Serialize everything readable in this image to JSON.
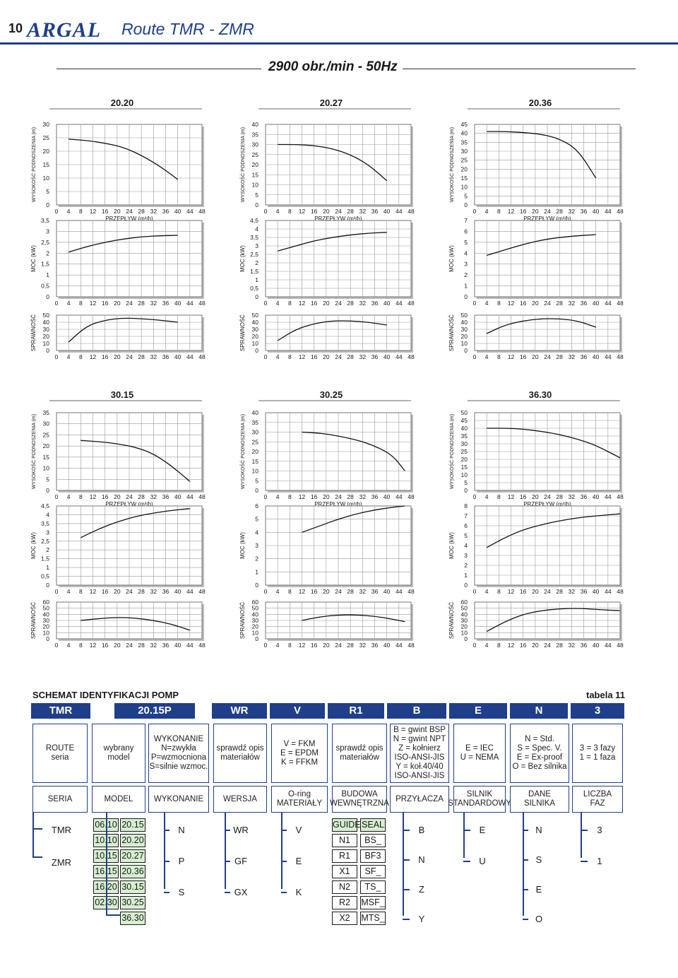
{
  "header": {
    "page_number": "10",
    "brand": "ARGAL",
    "title": "Route TMR - ZMR",
    "speed": "2900 obr./min - 50Hz"
  },
  "axis_text": {
    "head": "WYSOKOŚĆ PODNOSZENIA (m)",
    "flow": "PRZEPŁYW (m³/h)",
    "power": "MOC (kW)",
    "efficiency": "SPRAWNOŚĆ"
  },
  "chart_data": [
    {
      "type": "line",
      "title": "20.20",
      "x_ticks": [
        0,
        4,
        8,
        12,
        16,
        20,
        24,
        28,
        32,
        36,
        40,
        44,
        48
      ],
      "head": {
        "ylim": [
          0,
          30
        ],
        "y_ticks": [
          "0",
          "5",
          "10",
          "15",
          "20",
          "25",
          "30"
        ],
        "x": [
          4,
          10,
          16,
          22,
          28,
          34,
          40
        ],
        "y": [
          24.5,
          24,
          23,
          21.5,
          18.5,
          14.5,
          9.5
        ]
      },
      "power": {
        "ylim": [
          0,
          3.5
        ],
        "y_ticks": [
          "0",
          "0,5",
          "1",
          "1,5",
          "2",
          "2,5",
          "3",
          "3,5"
        ],
        "x": [
          4,
          10,
          16,
          22,
          28,
          34,
          40
        ],
        "y": [
          2.05,
          2.3,
          2.5,
          2.65,
          2.75,
          2.8,
          2.82
        ]
      },
      "efficiency": {
        "ylim": [
          0,
          50
        ],
        "y_ticks": [
          "0",
          "10",
          "20",
          "30",
          "40",
          "50"
        ],
        "x": [
          4,
          10,
          16,
          22,
          28,
          34,
          40
        ],
        "y": [
          12,
          35,
          43,
          46,
          45,
          43,
          40
        ]
      }
    },
    {
      "type": "line",
      "title": "20.27",
      "x_ticks": [
        0,
        4,
        8,
        12,
        16,
        20,
        24,
        28,
        32,
        36,
        40,
        44,
        48
      ],
      "head": {
        "ylim": [
          0,
          40
        ],
        "y_ticks": [
          "0",
          "5",
          "10",
          "15",
          "20",
          "25",
          "30",
          "35",
          "40"
        ],
        "x": [
          4,
          10,
          16,
          22,
          28,
          34,
          40
        ],
        "y": [
          30,
          30,
          29.5,
          28,
          25,
          20,
          12
        ]
      },
      "power": {
        "ylim": [
          0,
          4.5
        ],
        "y_ticks": [
          "0",
          "0,5",
          "1",
          "1,5",
          "2",
          "2,5",
          "3",
          "3,5",
          "4",
          "4,5"
        ],
        "x": [
          4,
          10,
          16,
          22,
          28,
          34,
          40
        ],
        "y": [
          2.7,
          3.0,
          3.3,
          3.5,
          3.65,
          3.75,
          3.8
        ]
      },
      "efficiency": {
        "ylim": [
          0,
          50
        ],
        "y_ticks": [
          "0",
          "10",
          "20",
          "30",
          "40",
          "50"
        ],
        "x": [
          4,
          10,
          16,
          22,
          28,
          34,
          40
        ],
        "y": [
          14,
          30,
          38,
          42,
          42,
          40,
          36
        ]
      }
    },
    {
      "type": "line",
      "title": "20.36",
      "x_ticks": [
        0,
        4,
        8,
        12,
        16,
        20,
        24,
        28,
        32,
        36,
        40,
        44,
        48
      ],
      "head": {
        "ylim": [
          0,
          45
        ],
        "y_ticks": [
          "0",
          "5",
          "10",
          "15",
          "20",
          "25",
          "30",
          "35",
          "40",
          "45"
        ],
        "x": [
          4,
          10,
          16,
          22,
          28,
          34,
          40
        ],
        "y": [
          41,
          41,
          40.5,
          39.5,
          37,
          31,
          15
        ]
      },
      "power": {
        "ylim": [
          0,
          7
        ],
        "y_ticks": [
          "0",
          "1",
          "2",
          "3",
          "4",
          "5",
          "6",
          "7"
        ],
        "x": [
          4,
          10,
          16,
          22,
          28,
          34,
          40
        ],
        "y": [
          3.8,
          4.3,
          4.8,
          5.2,
          5.45,
          5.6,
          5.7
        ]
      },
      "efficiency": {
        "ylim": [
          0,
          50
        ],
        "y_ticks": [
          "0",
          "10",
          "20",
          "30",
          "40",
          "50"
        ],
        "x": [
          4,
          10,
          16,
          22,
          28,
          34,
          40
        ],
        "y": [
          24,
          36,
          42,
          45,
          45,
          42,
          33
        ]
      }
    },
    {
      "type": "line",
      "title": "30.15",
      "x_ticks": [
        0,
        4,
        8,
        12,
        16,
        20,
        24,
        28,
        32,
        36,
        40,
        44,
        48
      ],
      "head": {
        "ylim": [
          0,
          35
        ],
        "y_ticks": [
          "0",
          "5",
          "10",
          "15",
          "20",
          "25",
          "30",
          "35"
        ],
        "x": [
          8,
          14,
          20,
          26,
          32,
          38,
          44
        ],
        "y": [
          22.5,
          22,
          21,
          19.5,
          16.5,
          11,
          4
        ]
      },
      "power": {
        "ylim": [
          0,
          4.5
        ],
        "y_ticks": [
          "0",
          "0,5",
          "1",
          "1,5",
          "2",
          "2,5",
          "3",
          "3,5",
          "4",
          "4,5"
        ],
        "x": [
          8,
          14,
          20,
          26,
          32,
          38,
          44
        ],
        "y": [
          2.7,
          3.2,
          3.6,
          3.9,
          4.1,
          4.25,
          4.35
        ]
      },
      "efficiency": {
        "ylim": [
          0,
          60
        ],
        "y_ticks": [
          "0",
          "10",
          "20",
          "30",
          "40",
          "50",
          "60"
        ],
        "x": [
          8,
          14,
          20,
          26,
          32,
          38,
          44
        ],
        "y": [
          30,
          33,
          35,
          34,
          30,
          24,
          14
        ]
      }
    },
    {
      "type": "line",
      "title": "30.25",
      "x_ticks": [
        0,
        4,
        8,
        12,
        16,
        20,
        24,
        28,
        32,
        36,
        40,
        44,
        48
      ],
      "head": {
        "ylim": [
          0,
          40
        ],
        "y_ticks": [
          "0",
          "5",
          "10",
          "15",
          "20",
          "25",
          "30",
          "35",
          "40"
        ],
        "x": [
          12,
          18,
          24,
          30,
          36,
          42,
          46
        ],
        "y": [
          30,
          29.5,
          28,
          26,
          23,
          18,
          10
        ]
      },
      "power": {
        "ylim": [
          0,
          6
        ],
        "y_ticks": [
          "0",
          "1",
          "2",
          "3",
          "4",
          "5",
          "6"
        ],
        "x": [
          12,
          18,
          24,
          30,
          36,
          42,
          46
        ],
        "y": [
          4.0,
          4.5,
          5.0,
          5.4,
          5.7,
          5.9,
          6.0
        ]
      },
      "efficiency": {
        "ylim": [
          0,
          60
        ],
        "y_ticks": [
          "0",
          "10",
          "20",
          "30",
          "40",
          "50",
          "60"
        ],
        "x": [
          12,
          18,
          24,
          30,
          36,
          42,
          46
        ],
        "y": [
          30,
          36,
          39,
          39,
          37,
          32,
          28
        ]
      }
    },
    {
      "type": "line",
      "title": "36.30",
      "x_ticks": [
        0,
        4,
        8,
        12,
        16,
        20,
        24,
        28,
        32,
        36,
        40,
        44,
        48
      ],
      "head": {
        "ylim": [
          0,
          50
        ],
        "y_ticks": [
          "0",
          "5",
          "10",
          "15",
          "20",
          "25",
          "30",
          "35",
          "40",
          "45",
          "50"
        ],
        "x": [
          4,
          10,
          16,
          22,
          28,
          34,
          40,
          48
        ],
        "y": [
          40,
          40,
          39.5,
          38,
          36,
          33,
          29,
          21
        ]
      },
      "power": {
        "ylim": [
          0,
          8
        ],
        "y_ticks": [
          "0",
          "1",
          "2",
          "3",
          "4",
          "5",
          "6",
          "7",
          "8"
        ],
        "x": [
          4,
          10,
          16,
          22,
          28,
          34,
          40,
          48
        ],
        "y": [
          3.8,
          4.8,
          5.6,
          6.1,
          6.5,
          6.8,
          7.0,
          7.2
        ]
      },
      "efficiency": {
        "ylim": [
          0,
          60
        ],
        "y_ticks": [
          "0",
          "10",
          "20",
          "30",
          "40",
          "50",
          "60"
        ],
        "x": [
          4,
          10,
          16,
          22,
          28,
          34,
          40,
          48
        ],
        "y": [
          12,
          28,
          40,
          46,
          49,
          50,
          48,
          46
        ]
      }
    }
  ],
  "schema": {
    "title": "SCHEMAT IDENTYFIKACJI POMP",
    "table_label": "tabela 11",
    "codes": [
      "TMR",
      "20.15P",
      "WR",
      "V",
      "R1",
      "B",
      "E",
      "N",
      "3"
    ],
    "descriptions": [
      "ROUTE\nseria",
      "wybrany\nmodel",
      "WYKONANIE\nN=zwykła\nP=wzmocniona\nS=silnie wzmoc.",
      "sprawdź opis\nmateriałów",
      "V = FKM\nE = EPDM\nK = FFKM",
      "sprawdź opis\nmateriałów",
      "B = gwint BSP\nN = gwint NPT\nZ = kołnierz\nISO-ANSI-JIS\nY = koł.40/40\nISO-ANSI-JIS",
      "E = IEC\nU = NEMA",
      "N = Std.\nS = Spec. V.\nE = Ex-proof\nO = Bez silnika",
      "3 = 3 fazy\n1 = 1 faza"
    ],
    "categories": [
      "SERIA",
      "MODEL",
      "WYKONANIE",
      "WERSJA",
      "O-ring\nMATERIAŁY",
      "BUDOWA\nWEWNĘTRZNA",
      "PRZYŁACZA",
      "SILNIK\nSTANDARDOWY",
      "DANE\nSILNIKA",
      "LICZBA\nFAZ"
    ],
    "series_options": [
      "TMR",
      "ZMR"
    ],
    "model_options": [
      "06.10",
      "20.15",
      "10.10",
      "20.20",
      "10.15",
      "20.27",
      "16.15",
      "20.36",
      "16.20",
      "30.15",
      "02.30",
      "30.25",
      "36.30"
    ],
    "version_options": [
      "N",
      "P",
      "S"
    ],
    "material_options": [
      "WR",
      "GF",
      "GX"
    ],
    "oring_options": [
      "V",
      "E",
      "K"
    ],
    "guide_options": [
      "GUIDE",
      "N1",
      "R1",
      "X1",
      "N2",
      "R2",
      "X2"
    ],
    "seal_options": [
      "SEAL",
      "BS_",
      "BF3",
      "SF_",
      "TS_",
      "MSF_",
      "MTS_"
    ],
    "connection_options": [
      "B",
      "N",
      "Z",
      "Y"
    ],
    "motor_options": [
      "E",
      "U"
    ],
    "motor_data_options": [
      "N",
      "S",
      "E",
      "O"
    ],
    "phase_options": [
      "3",
      "1"
    ]
  }
}
